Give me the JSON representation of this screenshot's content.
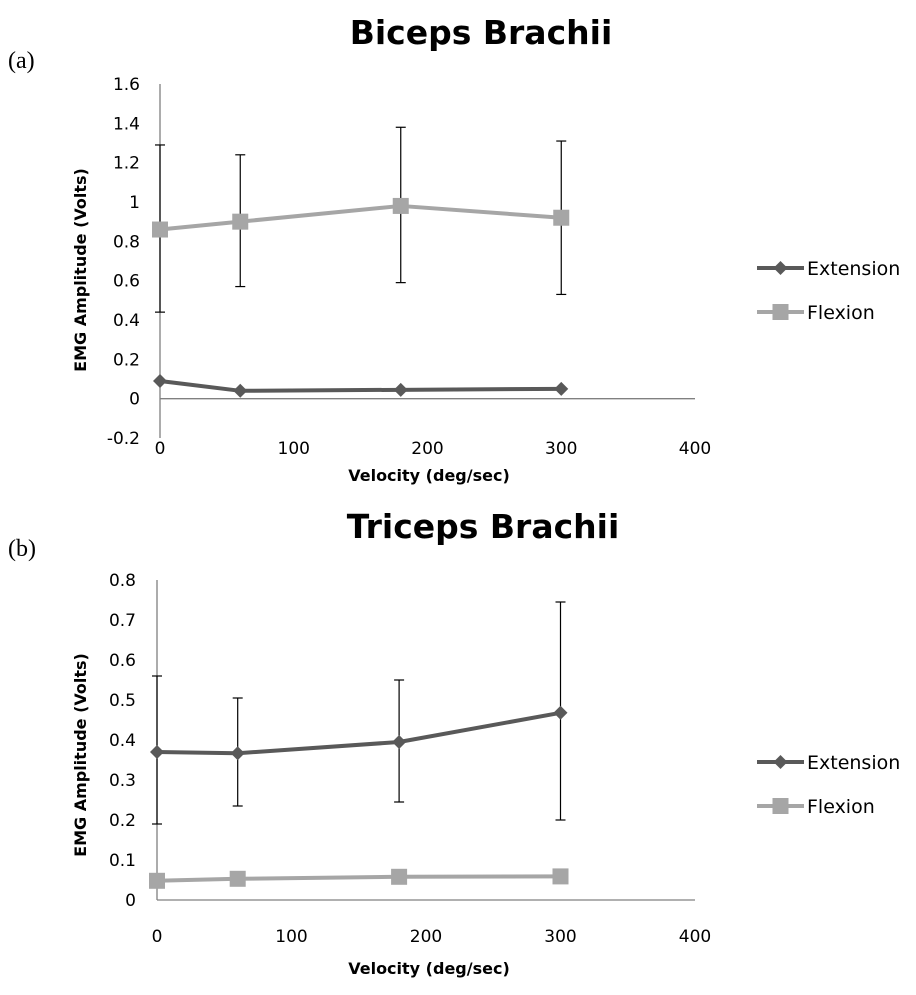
{
  "chart_data": [
    {
      "panel_label": "(a)",
      "type": "line",
      "title": "Biceps Brachii",
      "xlabel": "Velocity (deg/sec)",
      "ylabel": "EMG Amplitude (Volts)",
      "xlim": [
        0,
        400
      ],
      "ylim": [
        -0.2,
        1.6
      ],
      "xticks": [
        0,
        100,
        200,
        300,
        400
      ],
      "yticks": [
        -0.2,
        0,
        0.2,
        0.4,
        0.6,
        0.8,
        1,
        1.2,
        1.4,
        1.6
      ],
      "ytick_labels": [
        "-0.2",
        "0",
        "0.2",
        "0.4",
        "0.6",
        "0.8",
        "1",
        "1.2",
        "1.4",
        "1.6"
      ],
      "legend_position": "right",
      "series": [
        {
          "name": "Extension",
          "marker": "diamond",
          "color": "#595959",
          "x": [
            0,
            60,
            180,
            300
          ],
          "y": [
            0.09,
            0.04,
            0.045,
            0.05
          ],
          "err_low": [
            null,
            null,
            null,
            null
          ],
          "err_high": [
            null,
            null,
            null,
            null
          ]
        },
        {
          "name": "Flexion",
          "marker": "square",
          "color": "#a6a6a6",
          "x": [
            0,
            60,
            180,
            300
          ],
          "y": [
            0.86,
            0.9,
            0.98,
            0.92
          ],
          "err_low": [
            0.44,
            0.57,
            0.59,
            0.53
          ],
          "err_high": [
            1.29,
            1.24,
            1.38,
            1.31
          ]
        }
      ]
    },
    {
      "panel_label": "(b)",
      "type": "line",
      "title": "Triceps Brachii",
      "xlabel": "Velocity (deg/sec)",
      "ylabel": "EMG Amplitude (Volts)",
      "xlim": [
        0,
        400
      ],
      "ylim": [
        0,
        0.8
      ],
      "xticks": [
        0,
        100,
        200,
        300,
        400
      ],
      "yticks": [
        0,
        0.1,
        0.2,
        0.3,
        0.4,
        0.5,
        0.6,
        0.7,
        0.8
      ],
      "ytick_labels": [
        "0",
        "0.1",
        "0.2",
        "0.3",
        "0.4",
        "0.5",
        "0.6",
        "0.7",
        "0.8"
      ],
      "legend_position": "right",
      "series": [
        {
          "name": "Extension",
          "marker": "diamond",
          "color": "#595959",
          "x": [
            0,
            60,
            180,
            300
          ],
          "y": [
            0.37,
            0.367,
            0.395,
            0.468
          ],
          "err_low": [
            0.19,
            0.235,
            0.245,
            0.2
          ],
          "err_high": [
            0.56,
            0.505,
            0.55,
            0.745
          ]
        },
        {
          "name": "Flexion",
          "marker": "square",
          "color": "#a6a6a6",
          "x": [
            0,
            60,
            180,
            300
          ],
          "y": [
            0.048,
            0.053,
            0.058,
            0.059
          ],
          "err_low": [
            null,
            null,
            null,
            null
          ],
          "err_high": [
            null,
            null,
            null,
            null
          ]
        }
      ]
    }
  ]
}
